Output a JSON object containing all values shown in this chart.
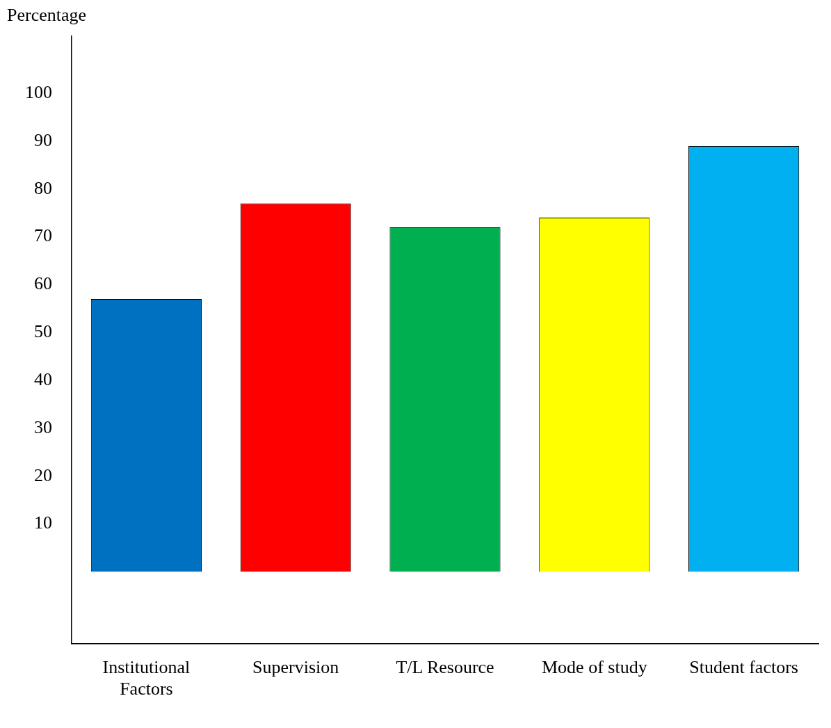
{
  "chart_data": {
    "type": "bar",
    "ylabel": "Percentage",
    "categories": [
      "Institutional Factors",
      "Supervision",
      "T/L Resource",
      "Mode of study",
      "Student factors"
    ],
    "values": [
      57,
      77,
      72,
      74,
      89
    ],
    "colors": [
      "#0070c0",
      "#ff0000",
      "#00b050",
      "#ffff00",
      "#00b0f0"
    ],
    "ylim": [
      -15,
      112
    ],
    "yticks": [
      10,
      20,
      30,
      40,
      50,
      60,
      70,
      80,
      90,
      100
    ],
    "grid": false,
    "legend": false
  }
}
